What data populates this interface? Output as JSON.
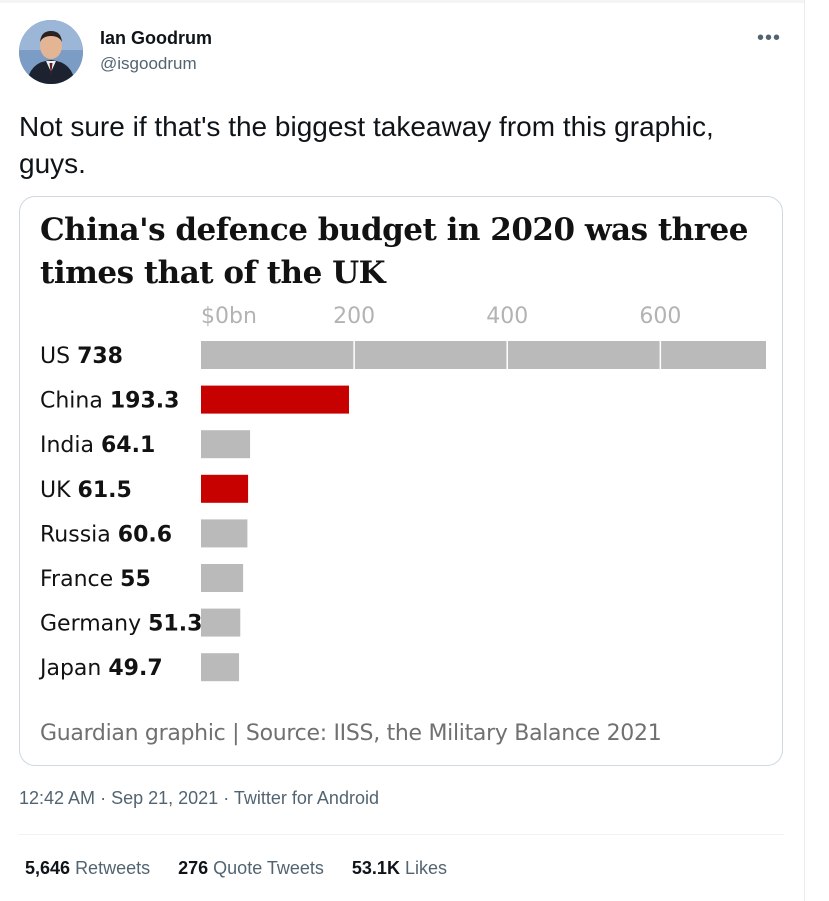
{
  "user": {
    "display_name": "Ian Goodrum",
    "handle": "@isgoodrum"
  },
  "more_icon": "more-dots-icon",
  "tweet_text": "Not sure if that's the biggest takeaway from this graphic, guys.",
  "chart_data": {
    "type": "bar",
    "orientation": "horizontal",
    "title": "China's defence budget in 2020 was three times that of the UK",
    "xlabel": "",
    "ylabel": "",
    "x_ticks": [
      "$0bn",
      "200",
      "400",
      "600"
    ],
    "x_tick_values": [
      0,
      200,
      400,
      600
    ],
    "xlim": [
      0,
      738
    ],
    "grid": true,
    "categories": [
      "US",
      "China",
      "India",
      "UK",
      "Russia",
      "France",
      "Germany",
      "Japan"
    ],
    "value_labels": [
      "738",
      "193.3",
      "64.1",
      "61.5",
      "60.6",
      "55",
      "51.3",
      "49.7"
    ],
    "values": [
      738,
      193.3,
      64.1,
      61.5,
      60.6,
      55,
      51.3,
      49.7
    ],
    "highlight": [
      false,
      true,
      false,
      true,
      false,
      false,
      false,
      false
    ],
    "colors": {
      "default": "#bababa",
      "highlight": "#c70000"
    },
    "source": "Guardian graphic | Source: IISS, the Military Balance 2021"
  },
  "meta": {
    "time": "12:42 AM",
    "date": "Sep 21, 2021",
    "separator": "·",
    "client": "Twitter for Android"
  },
  "stats": {
    "retweets_count": "5,646",
    "retweets_label": "Retweets",
    "quotes_count": "276",
    "quotes_label": "Quote Tweets",
    "likes_count": "53.1K",
    "likes_label": "Likes"
  }
}
